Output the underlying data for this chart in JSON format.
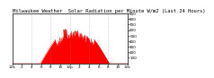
{
  "title": "Milwaukee Weather  Solar Radiation per Minute W/m2 (Last 24 Hours)",
  "title_fontsize": 4.0,
  "bg_color": "#ffffff",
  "plot_bg_color": "#ffffff",
  "fill_color": "#ff0000",
  "line_color": "#cc0000",
  "grid_color": "#888888",
  "ylim": [
    0,
    900
  ],
  "yticks": [
    100,
    200,
    300,
    400,
    500,
    600,
    700,
    800,
    900
  ],
  "num_points": 1440,
  "ylabel_fontsize": 3.0,
  "xlabel_fontsize": 3.0,
  "xtick_labels": [
    "12a",
    "2",
    "4",
    "6",
    "8",
    "10",
    "12p",
    "2",
    "4",
    "6",
    "8",
    "10",
    "12a"
  ]
}
